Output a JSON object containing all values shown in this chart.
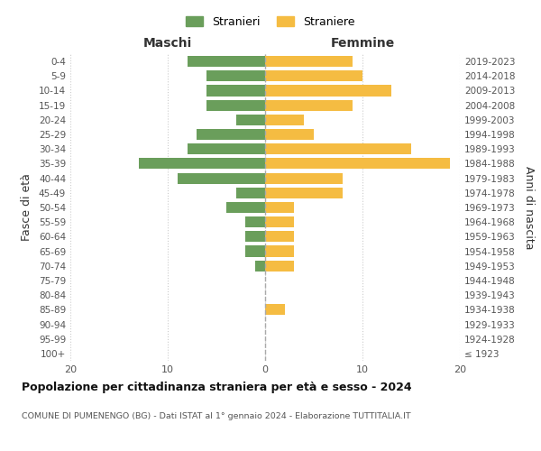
{
  "age_groups": [
    "100+",
    "95-99",
    "90-94",
    "85-89",
    "80-84",
    "75-79",
    "70-74",
    "65-69",
    "60-64",
    "55-59",
    "50-54",
    "45-49",
    "40-44",
    "35-39",
    "30-34",
    "25-29",
    "20-24",
    "15-19",
    "10-14",
    "5-9",
    "0-4"
  ],
  "birth_years": [
    "≤ 1923",
    "1924-1928",
    "1929-1933",
    "1934-1938",
    "1939-1943",
    "1944-1948",
    "1949-1953",
    "1954-1958",
    "1959-1963",
    "1964-1968",
    "1969-1973",
    "1974-1978",
    "1979-1983",
    "1984-1988",
    "1989-1993",
    "1994-1998",
    "1999-2003",
    "2004-2008",
    "2009-2013",
    "2014-2018",
    "2019-2023"
  ],
  "maschi": [
    0,
    0,
    0,
    0,
    0,
    0,
    1,
    2,
    2,
    2,
    4,
    3,
    9,
    13,
    8,
    7,
    3,
    6,
    6,
    6,
    8
  ],
  "femmine": [
    0,
    0,
    0,
    2,
    0,
    0,
    3,
    3,
    3,
    3,
    3,
    8,
    8,
    19,
    15,
    5,
    4,
    9,
    13,
    10,
    9
  ],
  "maschi_color": "#6a9e5b",
  "femmine_color": "#f5bc42",
  "background_color": "#ffffff",
  "grid_color": "#cccccc",
  "title": "Popolazione per cittadinanza straniera per età e sesso - 2024",
  "subtitle": "COMUNE DI PUMENENGO (BG) - Dati ISTAT al 1° gennaio 2024 - Elaborazione TUTTITALIA.IT",
  "legend_stranieri": "Stranieri",
  "legend_straniere": "Straniere",
  "xlabel_maschi": "Maschi",
  "xlabel_femmine": "Femmine",
  "ylabel_left": "Fasce di età",
  "ylabel_right": "Anni di nascita",
  "xlim": 20,
  "dashed_line_color": "#aaaaaa"
}
